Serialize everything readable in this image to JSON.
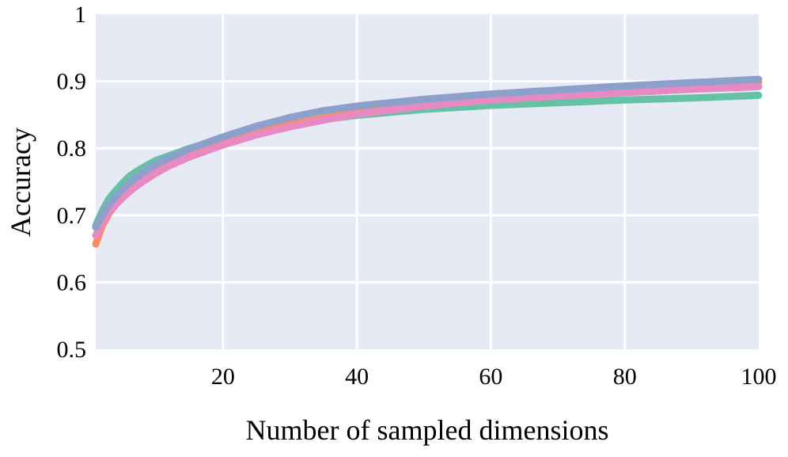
{
  "chart_data": {
    "type": "line",
    "title": "",
    "xlabel": "Number of sampled dimensions",
    "ylabel": "Accuracy",
    "xlim": [
      1,
      100
    ],
    "ylim": [
      0.5,
      1.0
    ],
    "xticks": [
      20,
      40,
      60,
      80,
      100
    ],
    "yticks": [
      0.5,
      0.6,
      0.7,
      0.8,
      0.9,
      1.0
    ],
    "xtick_labels": [
      "20",
      "40",
      "60",
      "80",
      "100"
    ],
    "ytick_labels": [
      "0.5",
      "0.6",
      "0.7",
      "0.8",
      "0.9",
      "1"
    ],
    "grid": true,
    "legend": "none",
    "background_color": "#e5eaf5",
    "series": [
      {
        "color": "#66c2a5",
        "x": [
          1,
          2,
          3,
          4,
          5,
          6,
          7,
          8,
          10,
          12,
          15,
          20,
          25,
          30,
          35,
          40,
          50,
          60,
          70,
          80,
          90,
          100
        ],
        "y": [
          0.685,
          0.707,
          0.725,
          0.737,
          0.748,
          0.758,
          0.765,
          0.771,
          0.782,
          0.789,
          0.8,
          0.814,
          0.826,
          0.836,
          0.843,
          0.849,
          0.858,
          0.864,
          0.868,
          0.872,
          0.875,
          0.879
        ]
      },
      {
        "color": "#fc8d62",
        "x": [
          1,
          2,
          3,
          4,
          5,
          6,
          7,
          8,
          10,
          12,
          15,
          20,
          25,
          30,
          35,
          40,
          50,
          60,
          70,
          80,
          90,
          100
        ],
        "y": [
          0.657,
          0.685,
          0.703,
          0.716,
          0.728,
          0.738,
          0.747,
          0.754,
          0.767,
          0.777,
          0.79,
          0.809,
          0.823,
          0.835,
          0.845,
          0.854,
          0.866,
          0.876,
          0.885,
          0.892,
          0.896,
          0.899
        ]
      },
      {
        "color": "#e78ac3",
        "x": [
          1,
          2,
          3,
          4,
          5,
          6,
          7,
          8,
          10,
          12,
          15,
          20,
          25,
          30,
          35,
          40,
          50,
          60,
          70,
          80,
          90,
          100
        ],
        "y": [
          0.67,
          0.69,
          0.705,
          0.716,
          0.726,
          0.735,
          0.743,
          0.75,
          0.763,
          0.774,
          0.787,
          0.805,
          0.82,
          0.832,
          0.842,
          0.851,
          0.863,
          0.872,
          0.878,
          0.883,
          0.888,
          0.892
        ]
      },
      {
        "color": "#8da0cb",
        "x": [
          1,
          2,
          3,
          4,
          5,
          6,
          7,
          8,
          10,
          12,
          15,
          20,
          25,
          30,
          35,
          40,
          50,
          60,
          70,
          80,
          90,
          100
        ],
        "y": [
          0.682,
          0.701,
          0.716,
          0.728,
          0.739,
          0.748,
          0.756,
          0.763,
          0.776,
          0.786,
          0.799,
          0.817,
          0.833,
          0.846,
          0.856,
          0.863,
          0.873,
          0.881,
          0.887,
          0.893,
          0.898,
          0.903
        ]
      }
    ]
  }
}
